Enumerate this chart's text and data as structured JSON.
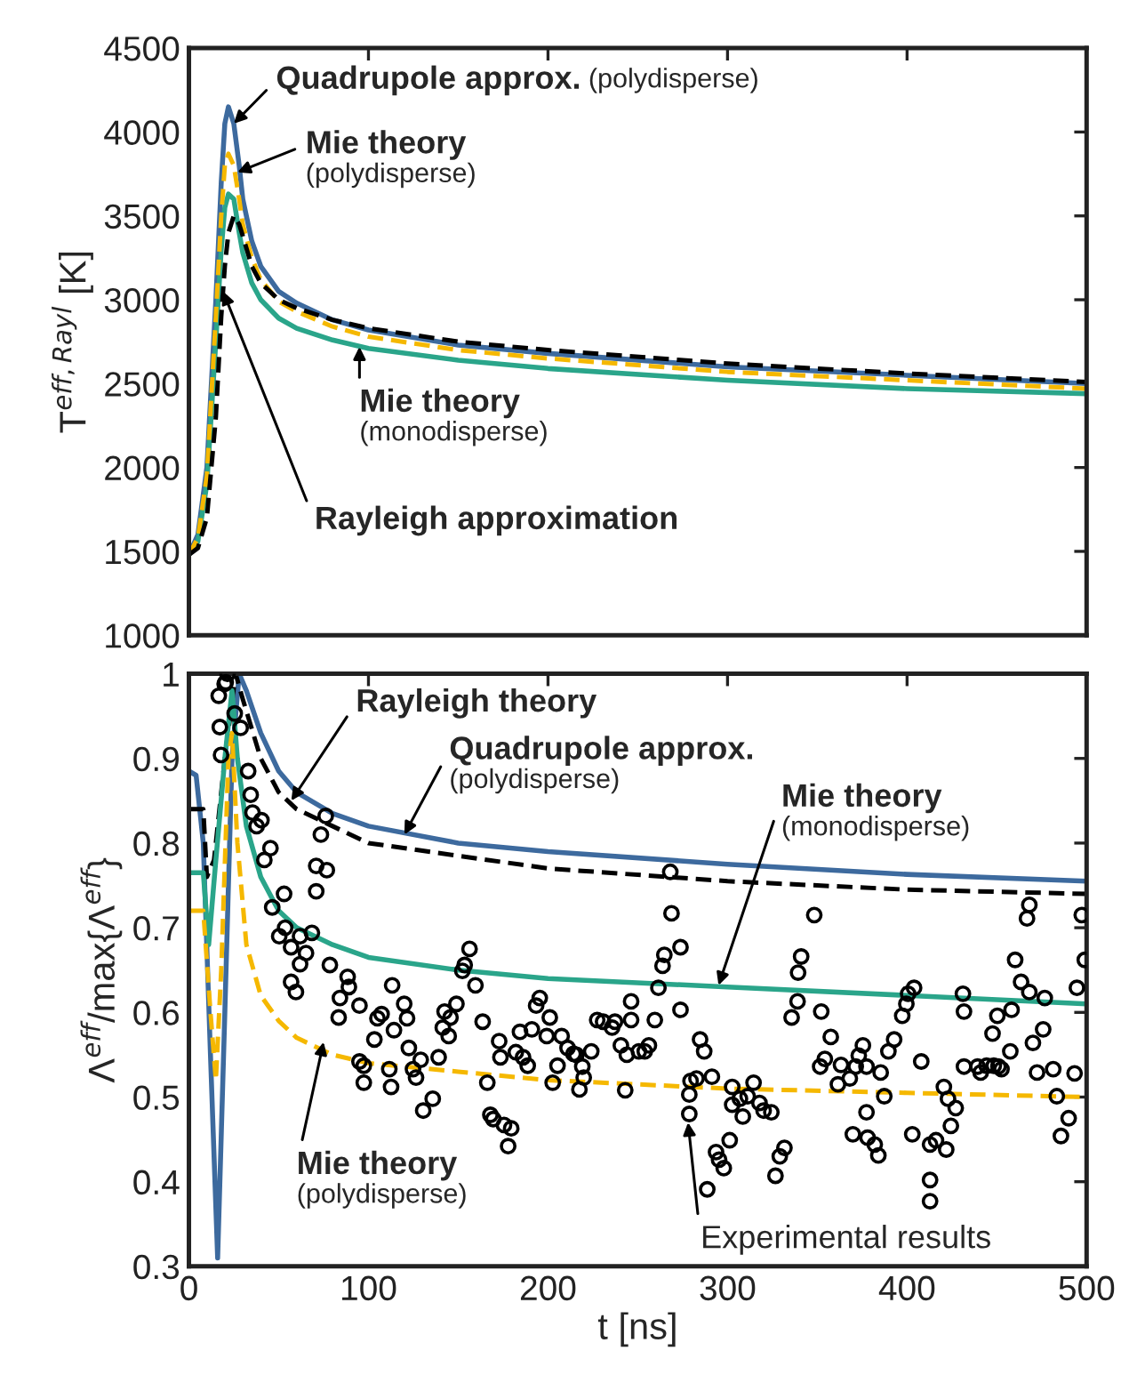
{
  "chart_data": [
    {
      "type": "line",
      "ylabel": "T$^{eff,Rayl}$ [K]",
      "xlim": [
        0,
        500
      ],
      "xticks": [
        0,
        100,
        200,
        300,
        400,
        500
      ],
      "ylim": [
        1000,
        4500
      ],
      "yticks": [
        1000,
        1500,
        2000,
        2500,
        3000,
        3500,
        4000,
        4500
      ],
      "tick_labels": "y",
      "grid": false,
      "series": [
        {
          "color": "#3d6a9e",
          "line_style": "solid",
          "x": [
            0,
            5,
            10,
            15,
            18,
            20,
            22,
            25,
            28,
            30,
            35,
            40,
            50,
            60,
            80,
            100,
            150,
            200,
            300,
            400,
            500
          ],
          "values": [
            1480,
            1600,
            2000,
            3000,
            3700,
            4050,
            4150,
            4050,
            3800,
            3600,
            3350,
            3200,
            3050,
            2980,
            2880,
            2820,
            2730,
            2680,
            2600,
            2550,
            2500
          ]
        },
        {
          "color": "#2aa58a",
          "line_style": "solid",
          "x": [
            0,
            5,
            10,
            15,
            18,
            20,
            22,
            25,
            28,
            30,
            35,
            40,
            50,
            60,
            80,
            100,
            150,
            200,
            300,
            400,
            500
          ],
          "values": [
            1480,
            1560,
            1900,
            2750,
            3300,
            3550,
            3630,
            3600,
            3400,
            3280,
            3100,
            3000,
            2890,
            2830,
            2760,
            2710,
            2640,
            2590,
            2520,
            2470,
            2440
          ]
        },
        {
          "color": "#f5b800",
          "line_style": "dashed",
          "x": [
            0,
            5,
            10,
            15,
            18,
            20,
            22,
            25,
            28,
            30,
            35,
            40,
            50,
            60,
            80,
            100,
            150,
            200,
            300,
            400,
            500
          ],
          "values": [
            1480,
            1580,
            1950,
            2900,
            3500,
            3800,
            3870,
            3800,
            3600,
            3450,
            3250,
            3120,
            2990,
            2930,
            2840,
            2780,
            2700,
            2650,
            2570,
            2520,
            2470
          ]
        },
        {
          "color": "#000000",
          "line_style": "dashed",
          "x": [
            0,
            5,
            10,
            15,
            18,
            20,
            22,
            25,
            28,
            30,
            35,
            40,
            50,
            60,
            80,
            100,
            150,
            200,
            300,
            400,
            500
          ],
          "values": [
            1480,
            1520,
            1700,
            2300,
            2900,
            3200,
            3400,
            3500,
            3450,
            3380,
            3200,
            3100,
            3000,
            2950,
            2880,
            2830,
            2750,
            2700,
            2620,
            2560,
            2510
          ]
        }
      ],
      "annotations": [
        {
          "text": "Quadrupole approx.\n(polydisperse)",
          "x": 25,
          "y": 4050
        },
        {
          "text": "Mie theory\n(polydisperse)",
          "x": 27,
          "y": 3760
        },
        {
          "text": "Mie theory\n(monodisperse)",
          "x": 95,
          "y": 2720
        },
        {
          "text": "Rayleigh approximation",
          "x": 19,
          "y": 3050
        }
      ]
    },
    {
      "type": "line",
      "xlabel": "t [ns]",
      "ylabel": "Λ$^{eff}$/max{Λ$^{eff}$}",
      "xlim": [
        0,
        500
      ],
      "xticks": [
        0,
        100,
        200,
        300,
        400,
        500
      ],
      "ylim": [
        0.3,
        1
      ],
      "yticks": [
        0.3,
        0.4,
        0.5,
        0.6,
        0.7,
        0.8,
        0.9,
        1
      ],
      "grid": false,
      "series": [
        {
          "color": "#3d6a9e",
          "line_style": "solid",
          "x": [
            0,
            4,
            8,
            12,
            16,
            20,
            24,
            28,
            32,
            40,
            50,
            60,
            80,
            100,
            150,
            200,
            300,
            400,
            500
          ],
          "values": [
            0.885,
            0.88,
            0.8,
            0.55,
            0.31,
            0.6,
            0.9,
            1.0,
            0.98,
            0.93,
            0.885,
            0.86,
            0.835,
            0.82,
            0.8,
            0.79,
            0.775,
            0.763,
            0.755
          ]
        },
        {
          "color": "#000000",
          "line_style": "dashed",
          "x": [
            0,
            8,
            10,
            14,
            20,
            26,
            30,
            40,
            50,
            60,
            80,
            100,
            200,
            300,
            400,
            500
          ],
          "values": [
            0.84,
            0.84,
            0.76,
            0.78,
            0.9,
            1.0,
            0.97,
            0.9,
            0.86,
            0.84,
            0.82,
            0.8,
            0.77,
            0.755,
            0.745,
            0.74
          ]
        },
        {
          "color": "#2aa58a",
          "line_style": "solid",
          "x": [
            0,
            8,
            11,
            15,
            20,
            24,
            27,
            32,
            40,
            50,
            60,
            80,
            100,
            150,
            200,
            300,
            400,
            500
          ],
          "values": [
            0.765,
            0.765,
            0.68,
            0.78,
            0.9,
            0.98,
            0.9,
            0.82,
            0.76,
            0.72,
            0.7,
            0.68,
            0.665,
            0.65,
            0.64,
            0.63,
            0.62,
            0.61
          ]
        },
        {
          "color": "#f5b800",
          "line_style": "dashed",
          "x": [
            0,
            8,
            12,
            15,
            18,
            22,
            24,
            27,
            32,
            40,
            50,
            60,
            80,
            100,
            150,
            200,
            300,
            400,
            500
          ],
          "values": [
            0.72,
            0.72,
            0.6,
            0.52,
            0.65,
            0.9,
            0.93,
            0.8,
            0.68,
            0.62,
            0.59,
            0.57,
            0.55,
            0.54,
            0.53,
            0.52,
            0.51,
            0.505,
            0.5
          ]
        },
        {
          "type": "scatter",
          "color": "#000000",
          "marker": "circle",
          "x": [
            16.6,
            19.9,
            21.5,
            20.5,
            17.2,
            17.9,
            25.5,
            28.8,
            33,
            34.4,
            35.4,
            37.7,
            40.4,
            42,
            45.4,
            46.4,
            50.3,
            53,
            53.6,
            56.9,
            56.9,
            59.6,
            61.9,
            61.9,
            65.2,
            68.5,
            70.9,
            70.9,
            73.5,
            76.2,
            76.8,
            78.5,
            84.1,
            83.4,
            88.4,
            89.1,
            95,
            95,
            97.4,
            97.4,
            103.3,
            105,
            107.3,
            111.6,
            112.6,
            113.2,
            114.2,
            119.9,
            121.5,
            122.5,
            124.8,
            126.5,
            129.1,
            130.5,
            135.8,
            139.1,
            141.4,
            142.4,
            144.7,
            145.7,
            149,
            152.3,
            153.6,
            156.3,
            159.6,
            163.6,
            166.2,
            167.9,
            169.5,
            172.8,
            173.5,
            175.5,
            177.8,
            179.5,
            182.1,
            184.4,
            186.1,
            188.7,
            191,
            193.4,
            195.4,
            199.3,
            201,
            202.6,
            205.3,
            207.6,
            210.9,
            214.2,
            217.5,
            219.9,
            215.8,
            219.1,
            224.1,
            227.4,
            230.7,
            235.7,
            237.3,
            240.6,
            243.9,
            243,
            246.3,
            246.3,
            250.6,
            253.9,
            256.2,
            259.5,
            261.5,
            263.8,
            264.8,
            268.1,
            268.8,
            273.8,
            273.8,
            278.7,
            278.7,
            279.4,
            282.7,
            284.7,
            287,
            288.7,
            291.3,
            293.6,
            295.3,
            297.9,
            301.2,
            302.6,
            302.6,
            306.9,
            308.5,
            311.2,
            314.5,
            317.8,
            320.1,
            324.4,
            326.7,
            329.1,
            331.7,
            335.7,
            339,
            339.3,
            341,
            348.3,
            352.2,
            351.6,
            354.2,
            357.5,
            361.5,
            363.2,
            368.1,
            369.8,
            371.4,
            373.1,
            375.4,
            377.4,
            377.4,
            378,
            382,
            384,
            385.3,
            387.3,
            389.6,
            392.8,
            397.3,
            399.6,
            400.6,
            403.9,
            402.9,
            407.9,
            412.8,
            412.8,
            412.8,
            416.1,
            420.5,
            421.8,
            422.8,
            424.4,
            427.1,
            431.1,
            431.7,
            431.7,
            439.3,
            441,
            444.3,
            447.6,
            450.3,
            448.3,
            450.9,
            452.6,
            457.5,
            458.2,
            460.2,
            463.5,
            466.8,
            468.1,
            468.1,
            470.1,
            472.4,
            475.8,
            476.7,
            481.4,
            483.4,
            485.7,
            490,
            493.3,
            494.6,
            497.3,
            499
          ],
          "values": [
            0.974,
            0.988,
            1.0,
            0.99,
            0.937,
            0.904,
            0.953,
            0.936,
            0.885,
            0.857,
            0.836,
            0.82,
            0.827,
            0.78,
            0.794,
            0.724,
            0.69,
            0.74,
            0.7,
            0.677,
            0.636,
            0.624,
            0.69,
            0.657,
            0.67,
            0.694,
            0.743,
            0.773,
            0.81,
            0.832,
            0.768,
            0.656,
            0.617,
            0.594,
            0.642,
            0.63,
            0.608,
            0.542,
            0.517,
            0.537,
            0.568,
            0.593,
            0.598,
            0.533,
            0.512,
            0.632,
            0.579,
            0.61,
            0.593,
            0.558,
            0.533,
            0.523,
            0.544,
            0.484,
            0.498,
            0.547,
            0.582,
            0.601,
            0.572,
            0.594,
            0.61,
            0.649,
            0.656,
            0.675,
            0.632,
            0.589,
            0.517,
            0.479,
            0.474,
            0.566,
            0.547,
            0.467,
            0.442,
            0.463,
            0.553,
            0.577,
            0.547,
            0.537,
            0.58,
            0.608,
            0.617,
            0.572,
            0.594,
            0.517,
            0.537,
            0.572,
            0.558,
            0.551,
            0.509,
            0.523,
            0.55,
            0.536,
            0.554,
            0.591,
            0.589,
            0.582,
            0.589,
            0.561,
            0.55,
            0.508,
            0.591,
            0.613,
            0.554,
            0.554,
            0.561,
            0.591,
            0.629,
            0.655,
            0.668,
            0.766,
            0.717,
            0.677,
            0.603,
            0.48,
            0.503,
            0.519,
            0.522,
            0.568,
            0.554,
            0.391,
            0.524,
            0.435,
            0.426,
            0.416,
            0.449,
            0.512,
            0.491,
            0.498,
            0.477,
            0.501,
            0.517,
            0.493,
            0.484,
            0.482,
            0.407,
            0.43,
            0.44,
            0.594,
            0.613,
            0.647,
            0.666,
            0.715,
            0.601,
            0.536,
            0.545,
            0.571,
            0.515,
            0.538,
            0.522,
            0.456,
            0.536,
            0.549,
            0.561,
            0.482,
            0.536,
            0.452,
            0.444,
            0.431,
            0.529,
            0.501,
            0.554,
            0.568,
            0.596,
            0.61,
            0.622,
            0.629,
            0.456,
            0.542,
            0.444,
            0.402,
            0.377,
            0.449,
            0.512,
            0.438,
            0.498,
            0.466,
            0.487,
            0.622,
            0.601,
            0.536,
            0.536,
            0.529,
            0.537,
            0.575,
            0.596,
            0.537,
            0.536,
            0.533,
            0.554,
            0.603,
            0.662,
            0.636,
            0.711,
            0.727,
            0.624,
            0.564,
            0.529,
            0.58,
            0.617,
            0.533,
            0.501,
            0.454,
            0.475,
            0.528,
            0.629,
            0.715,
            0.662
          ]
        }
      ],
      "annotations": [
        {
          "text": "Rayleigh theory",
          "x": 57,
          "y": 0.85
        },
        {
          "text": "Quadrupole approx.\n(polydisperse)",
          "x": 120,
          "y": 0.81
        },
        {
          "text": "Mie theory\n(monodisperse)",
          "x": 295,
          "y": 0.632
        },
        {
          "text": "Mie theory\n(polydisperse)",
          "x": 75,
          "y": 0.565
        },
        {
          "text": "Experimental results",
          "x": 278,
          "y": 0.47
        }
      ]
    }
  ]
}
